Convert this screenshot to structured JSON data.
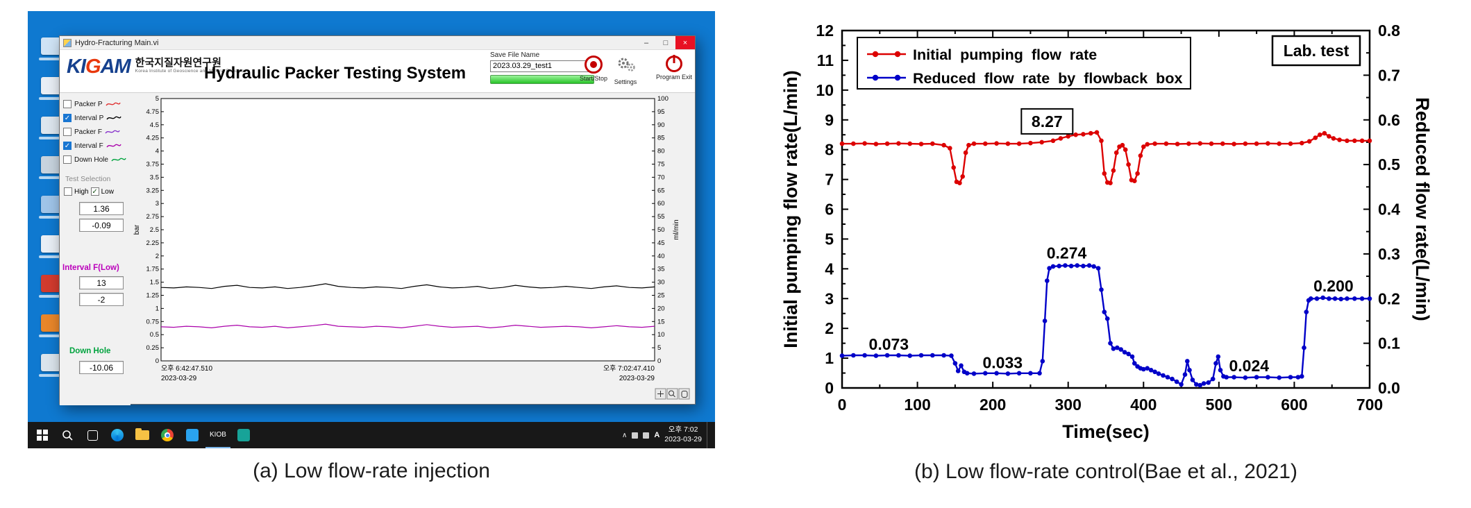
{
  "captions": {
    "a": "(a) Low flow-rate injection",
    "b": "(b) Low flow-rate control(Bae et al., 2021)"
  },
  "desktop": {
    "icons": [
      {
        "name": "desktop-icon-1",
        "color": "#cfe3f5"
      },
      {
        "name": "desktop-icon-2",
        "color": "#e8eef5"
      },
      {
        "name": "desktop-icon-3",
        "color": "#dde6ee"
      },
      {
        "name": "desktop-icon-4",
        "color": "#c7d3de"
      },
      {
        "name": "desktop-icon-5",
        "color": "#9fc4e8"
      },
      {
        "name": "desktop-icon-6",
        "color": "#e8eef5"
      },
      {
        "name": "desktop-icon-7",
        "color": "#d23b2e"
      },
      {
        "name": "desktop-icon-8",
        "color": "#e8862a"
      },
      {
        "name": "desktop-icon-9",
        "color": "#dbe4ec"
      }
    ],
    "taskbar": {
      "app_label": "KIOB",
      "tray_chevron": "∧",
      "tray_ime": "A",
      "tray_time": "오후 7:02",
      "tray_date": "2023-03-29"
    }
  },
  "app": {
    "window_title": "Hydro-Fracturing Main.vi",
    "controls": {
      "minimize": "–",
      "maximize": "□",
      "close": "×"
    },
    "header": {
      "logo_left": "KI",
      "logo_g": "G",
      "logo_right": "AM",
      "org_korean": "한국지질자원연구원",
      "org_english": "Korea Institute of Geoscience and Mineral Resources",
      "title": "Hydraulic Packer Testing System",
      "save_file_label": "Save File Name",
      "save_file_value": "2023.03.29_test1",
      "start_stop_label": "Start/Stop",
      "settings_label": "Settings",
      "exit_label": "Program Exit"
    },
    "sidebar": {
      "channels": [
        {
          "label": "Packer P",
          "color": "#e03030",
          "checked": false
        },
        {
          "label": "Interval P",
          "color": "#000000",
          "checked": true
        },
        {
          "label": "Packer F",
          "color": "#8833cc",
          "checked": false
        },
        {
          "label": "Interval F",
          "color": "#aa00aa",
          "checked": true
        },
        {
          "label": "Down Hole",
          "color": "#00a33e",
          "checked": false
        }
      ],
      "test_selection_label": "Test Selection",
      "high_label": "High",
      "low_label": "Low",
      "high_checked": false,
      "low_checked": true,
      "check_glyph": "✓",
      "values_top": [
        "1.36",
        "-0.09"
      ],
      "interval_f_label": "Interval F(Low)",
      "interval_f_values": [
        "13",
        "-2"
      ],
      "down_hole_label": "Down Hole",
      "down_hole_value": "-10.06"
    }
  },
  "chart_data": [
    {
      "type": "line",
      "context": "labview-strip-chart",
      "left_axis": {
        "label": "bar",
        "min": 0,
        "max": 5,
        "step": 0.25
      },
      "right_axis": {
        "label": "ml/min",
        "min": 0,
        "max": 100,
        "step": 5
      },
      "x_start": [
        "오후 6:42:47.510",
        "2023-03-29"
      ],
      "x_end": [
        "오후 7:02:47.410",
        "2023-03-29"
      ],
      "series": [
        {
          "name": "Interval P",
          "color": "#000000",
          "values": [
            1.4,
            1.39,
            1.41,
            1.4,
            1.38,
            1.42,
            1.44,
            1.4,
            1.39,
            1.41,
            1.38,
            1.4,
            1.43,
            1.47,
            1.42,
            1.4,
            1.39,
            1.41,
            1.4,
            1.38,
            1.42,
            1.45,
            1.41,
            1.39,
            1.4,
            1.42,
            1.38,
            1.4,
            1.44,
            1.41,
            1.39,
            1.4,
            1.42,
            1.4,
            1.38,
            1.41,
            1.43,
            1.4,
            1.39,
            1.41
          ]
        },
        {
          "name": "Interval F",
          "color": "#aa00aa",
          "values": [
            0.65,
            0.64,
            0.66,
            0.65,
            0.63,
            0.66,
            0.68,
            0.65,
            0.64,
            0.66,
            0.63,
            0.65,
            0.67,
            0.7,
            0.66,
            0.65,
            0.64,
            0.66,
            0.65,
            0.63,
            0.66,
            0.69,
            0.66,
            0.64,
            0.65,
            0.66,
            0.63,
            0.65,
            0.68,
            0.66,
            0.64,
            0.65,
            0.66,
            0.65,
            0.63,
            0.65,
            0.67,
            0.65,
            0.64,
            0.66
          ]
        }
      ]
    },
    {
      "type": "scatter-line",
      "badge": "Lab. test",
      "xlabel": "Time(sec)",
      "left_ylabel": "Initial pumping flow rate(L/min)",
      "right_ylabel": "Reduced flow rate(L/min)",
      "x_min": 0,
      "x_max": 700,
      "x_step": 100,
      "x_minor": 50,
      "left_min": 0,
      "left_max": 12,
      "left_step": 1,
      "left_minor": 0.5,
      "right_min": 0,
      "right_max": 0.8,
      "right_step": 0.1,
      "right_minor": 0.05,
      "legend_position": "top-left",
      "grid": false,
      "series": [
        {
          "name": "Initial pumping flow rate",
          "color": "#dc0000",
          "axis": "left",
          "points": [
            [
              0,
              8.2
            ],
            [
              15,
              8.2
            ],
            [
              30,
              8.21
            ],
            [
              45,
              8.19
            ],
            [
              60,
              8.2
            ],
            [
              75,
              8.21
            ],
            [
              90,
              8.2
            ],
            [
              105,
              8.19
            ],
            [
              120,
              8.2
            ],
            [
              135,
              8.15
            ],
            [
              143,
              8.05
            ],
            [
              148,
              7.4
            ],
            [
              152,
              6.92
            ],
            [
              156,
              6.88
            ],
            [
              160,
              7.1
            ],
            [
              164,
              7.9
            ],
            [
              168,
              8.15
            ],
            [
              175,
              8.2
            ],
            [
              190,
              8.2
            ],
            [
              205,
              8.21
            ],
            [
              220,
              8.2
            ],
            [
              235,
              8.2
            ],
            [
              250,
              8.22
            ],
            [
              265,
              8.25
            ],
            [
              280,
              8.3
            ],
            [
              290,
              8.38
            ],
            [
              300,
              8.45
            ],
            [
              310,
              8.5
            ],
            [
              320,
              8.52
            ],
            [
              330,
              8.55
            ],
            [
              338,
              8.58
            ],
            [
              344,
              8.3
            ],
            [
              348,
              7.2
            ],
            [
              352,
              6.9
            ],
            [
              356,
              6.88
            ],
            [
              360,
              7.3
            ],
            [
              364,
              7.9
            ],
            [
              368,
              8.1
            ],
            [
              372,
              8.15
            ],
            [
              376,
              8.0
            ],
            [
              380,
              7.5
            ],
            [
              384,
              6.98
            ],
            [
              388,
              6.95
            ],
            [
              392,
              7.2
            ],
            [
              396,
              7.8
            ],
            [
              400,
              8.1
            ],
            [
              405,
              8.18
            ],
            [
              415,
              8.2
            ],
            [
              430,
              8.2
            ],
            [
              445,
              8.19
            ],
            [
              460,
              8.2
            ],
            [
              475,
              8.21
            ],
            [
              490,
              8.2
            ],
            [
              505,
              8.2
            ],
            [
              520,
              8.19
            ],
            [
              535,
              8.2
            ],
            [
              550,
              8.2
            ],
            [
              565,
              8.21
            ],
            [
              580,
              8.2
            ],
            [
              595,
              8.2
            ],
            [
              610,
              8.22
            ],
            [
              620,
              8.28
            ],
            [
              628,
              8.4
            ],
            [
              634,
              8.5
            ],
            [
              640,
              8.55
            ],
            [
              646,
              8.45
            ],
            [
              652,
              8.38
            ],
            [
              660,
              8.33
            ],
            [
              670,
              8.3
            ],
            [
              680,
              8.3
            ],
            [
              690,
              8.3
            ],
            [
              700,
              8.3
            ]
          ]
        },
        {
          "name": "Reduced flow rate by flowback box",
          "color": "#0000c8",
          "axis": "right",
          "points": [
            [
              0,
              0.072
            ],
            [
              15,
              0.073
            ],
            [
              30,
              0.073
            ],
            [
              45,
              0.072
            ],
            [
              60,
              0.073
            ],
            [
              75,
              0.073
            ],
            [
              90,
              0.072
            ],
            [
              105,
              0.073
            ],
            [
              120,
              0.073
            ],
            [
              135,
              0.073
            ],
            [
              145,
              0.072
            ],
            [
              150,
              0.055
            ],
            [
              154,
              0.038
            ],
            [
              158,
              0.05
            ],
            [
              162,
              0.036
            ],
            [
              166,
              0.033
            ],
            [
              175,
              0.032
            ],
            [
              190,
              0.033
            ],
            [
              205,
              0.033
            ],
            [
              220,
              0.032
            ],
            [
              235,
              0.033
            ],
            [
              250,
              0.033
            ],
            [
              262,
              0.033
            ],
            [
              266,
              0.06
            ],
            [
              269,
              0.15
            ],
            [
              272,
              0.24
            ],
            [
              275,
              0.268
            ],
            [
              280,
              0.272
            ],
            [
              288,
              0.273
            ],
            [
              296,
              0.274
            ],
            [
              304,
              0.273
            ],
            [
              312,
              0.274
            ],
            [
              320,
              0.273
            ],
            [
              328,
              0.274
            ],
            [
              334,
              0.272
            ],
            [
              340,
              0.268
            ],
            [
              344,
              0.22
            ],
            [
              348,
              0.17
            ],
            [
              352,
              0.155
            ],
            [
              356,
              0.1
            ],
            [
              360,
              0.088
            ],
            [
              365,
              0.09
            ],
            [
              370,
              0.086
            ],
            [
              375,
              0.08
            ],
            [
              380,
              0.076
            ],
            [
              385,
              0.07
            ],
            [
              388,
              0.055
            ],
            [
              392,
              0.048
            ],
            [
              396,
              0.044
            ],
            [
              400,
              0.042
            ],
            [
              405,
              0.044
            ],
            [
              410,
              0.04
            ],
            [
              415,
              0.036
            ],
            [
              420,
              0.032
            ],
            [
              426,
              0.028
            ],
            [
              432,
              0.024
            ],
            [
              438,
              0.02
            ],
            [
              444,
              0.014
            ],
            [
              450,
              0.008
            ],
            [
              455,
              0.03
            ],
            [
              458,
              0.06
            ],
            [
              461,
              0.04
            ],
            [
              465,
              0.018
            ],
            [
              470,
              0.008
            ],
            [
              475,
              0.006
            ],
            [
              480,
              0.01
            ],
            [
              486,
              0.012
            ],
            [
              492,
              0.02
            ],
            [
              496,
              0.055
            ],
            [
              499,
              0.07
            ],
            [
              502,
              0.04
            ],
            [
              506,
              0.026
            ],
            [
              510,
              0.024
            ],
            [
              520,
              0.024
            ],
            [
              535,
              0.023
            ],
            [
              550,
              0.024
            ],
            [
              565,
              0.024
            ],
            [
              580,
              0.023
            ],
            [
              595,
              0.024
            ],
            [
              605,
              0.024
            ],
            [
              610,
              0.026
            ],
            [
              613,
              0.09
            ],
            [
              616,
              0.17
            ],
            [
              619,
              0.196
            ],
            [
              622,
              0.2
            ],
            [
              630,
              0.2
            ],
            [
              638,
              0.202
            ],
            [
              646,
              0.2
            ],
            [
              654,
              0.2
            ],
            [
              662,
              0.199
            ],
            [
              670,
              0.2
            ],
            [
              680,
              0.2
            ],
            [
              690,
              0.2
            ],
            [
              700,
              0.2
            ]
          ]
        }
      ],
      "annotations": [
        {
          "text": "8.27",
          "x": 272,
          "y": 8.95,
          "axis": "left",
          "boxed": true
        },
        {
          "text": "0.073",
          "x": 62,
          "y": 0.098,
          "axis": "right",
          "boxed": false
        },
        {
          "text": "0.033",
          "x": 213,
          "y": 0.057,
          "axis": "right",
          "boxed": false
        },
        {
          "text": "0.274",
          "x": 298,
          "y": 0.302,
          "axis": "right",
          "boxed": false
        },
        {
          "text": "0.024",
          "x": 540,
          "y": 0.05,
          "axis": "right",
          "boxed": false
        },
        {
          "text": "0.200",
          "x": 652,
          "y": 0.228,
          "axis": "right",
          "boxed": false
        }
      ]
    }
  ]
}
